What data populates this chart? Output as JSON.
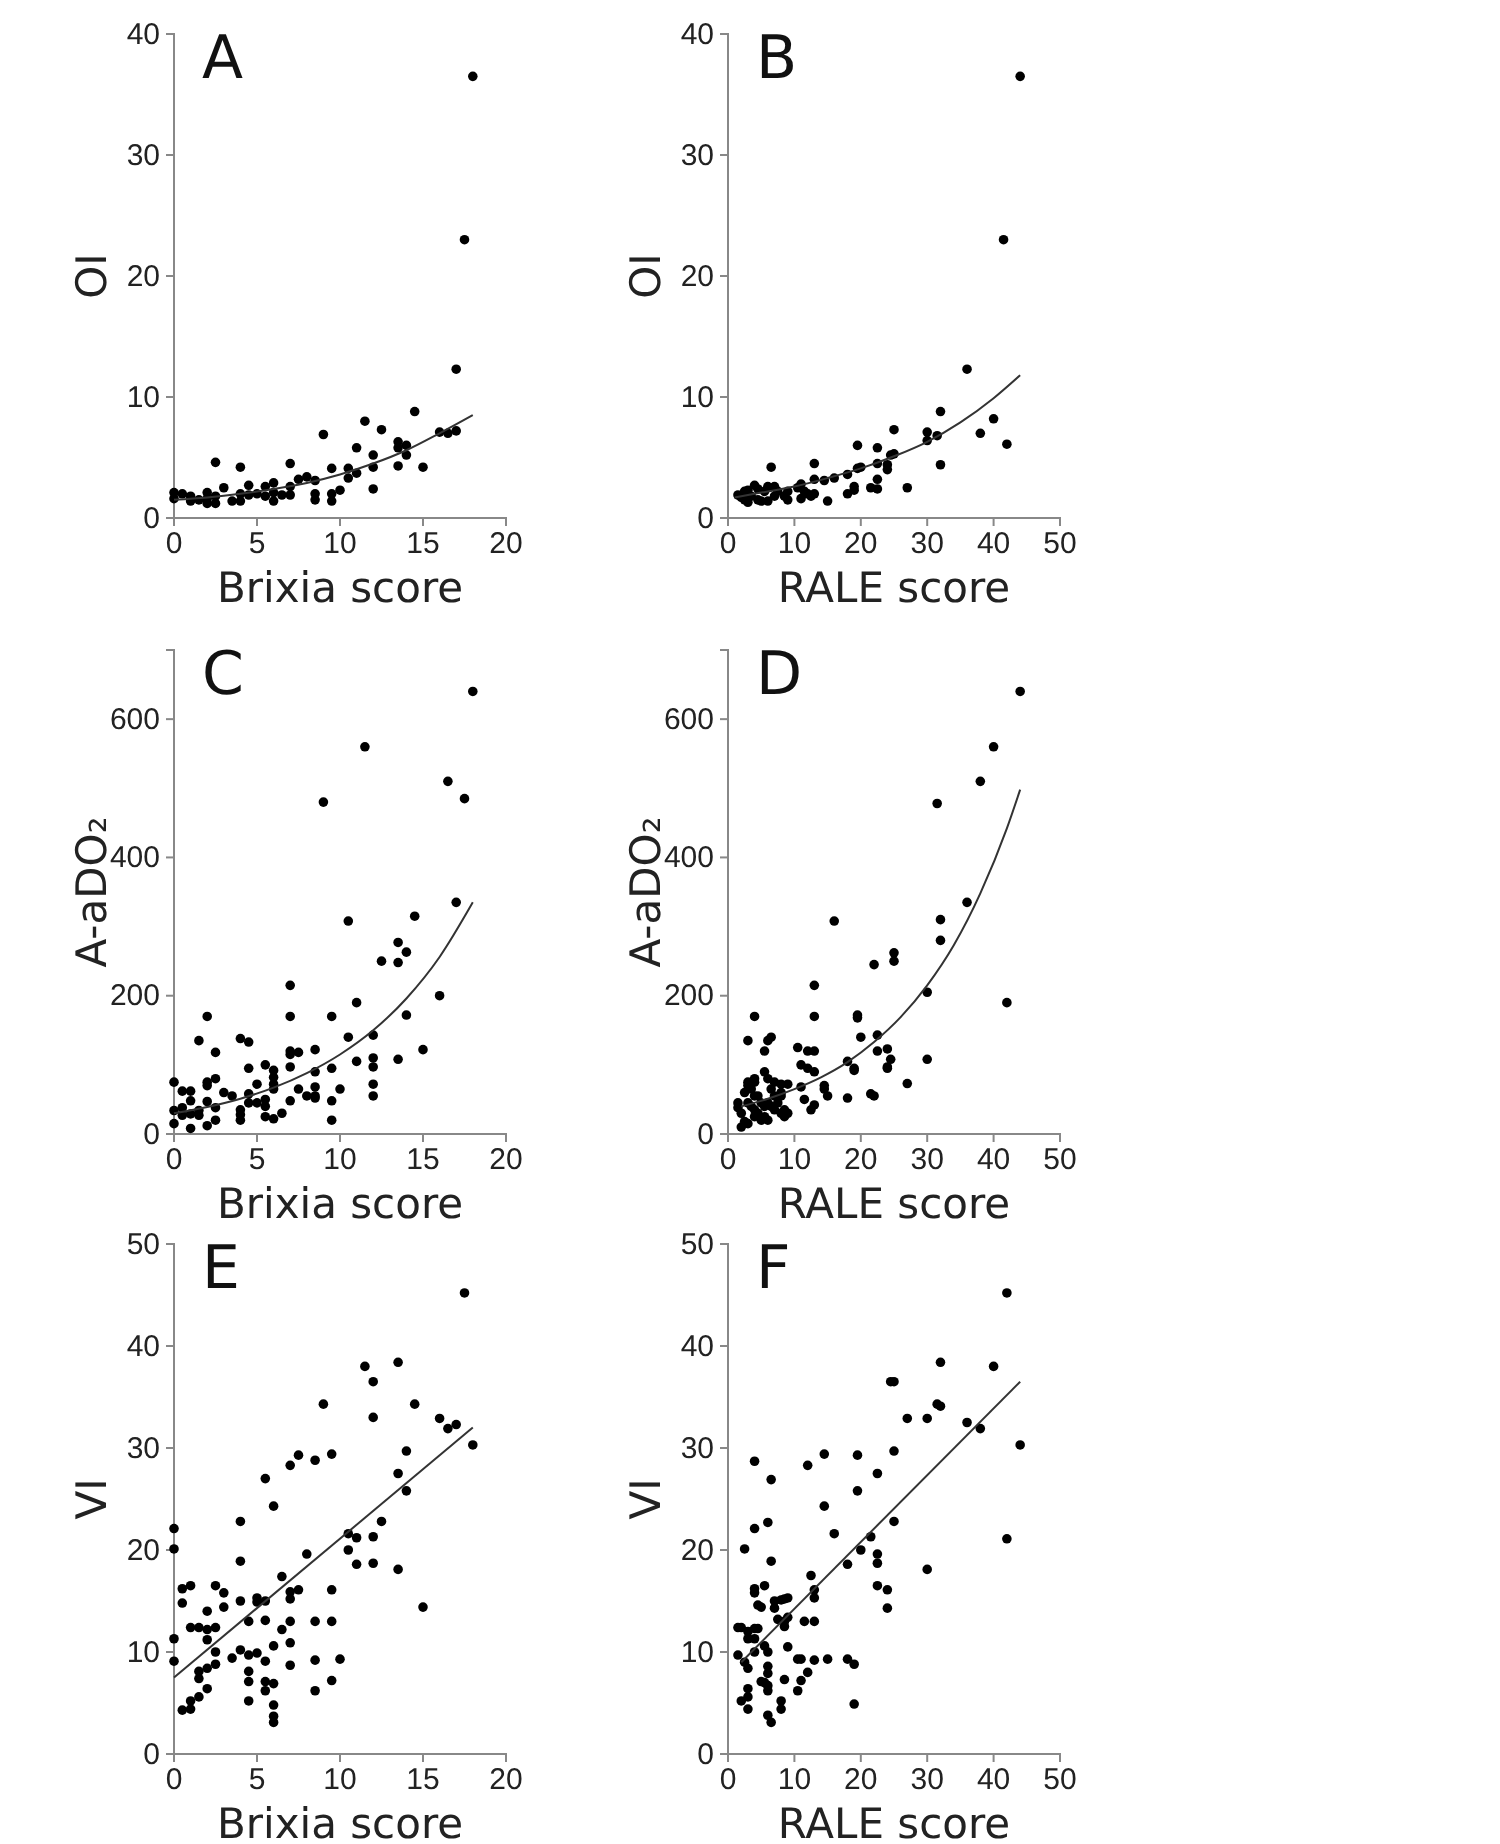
{
  "chart_data": [
    {
      "type": "scatter",
      "title": "A",
      "xlabel": "Brixia score",
      "ylabel": "OI",
      "xlim": [
        0,
        20
      ],
      "xticks": [
        0,
        5,
        10,
        15,
        20
      ],
      "ylim": [
        0,
        40
      ],
      "yticks": [
        0,
        10,
        20,
        30,
        40
      ],
      "series": [
        {
          "marker": "circle",
          "color": "#000000",
          "x": [
            0,
            0,
            0.5,
            1,
            1,
            1.5,
            2,
            2,
            2,
            2.5,
            2.5,
            2.5,
            3,
            3.5,
            4,
            4,
            4,
            4.5,
            4.5,
            5,
            5.5,
            5.5,
            6,
            6,
            6,
            6.5,
            7,
            7,
            7,
            7.5,
            8,
            8.5,
            8.5,
            8.5,
            9,
            9.5,
            9.5,
            9.5,
            10,
            10.5,
            10.5,
            11,
            11,
            11.5,
            12,
            12,
            12,
            12.5,
            13.5,
            13.5,
            13.5,
            14,
            14,
            14.5,
            15,
            16,
            16.5,
            17,
            17,
            17.5,
            18
          ],
          "values": [
            2.1,
            1.6,
            2.0,
            1.8,
            1.4,
            1.5,
            2.1,
            1.6,
            1.2,
            4.6,
            1.8,
            1.2,
            2.5,
            1.4,
            4.2,
            2.0,
            1.4,
            2.7,
            1.9,
            2.0,
            2.6,
            1.8,
            2.9,
            2.1,
            1.4,
            1.9,
            4.5,
            2.6,
            1.9,
            3.2,
            3.4,
            3.1,
            2.0,
            1.5,
            6.9,
            4.1,
            2.0,
            1.4,
            2.3,
            4.1,
            3.3,
            5.8,
            3.7,
            8.0,
            5.2,
            4.2,
            2.4,
            7.3,
            6.3,
            5.8,
            4.3,
            6.0,
            5.2,
            8.8,
            4.2,
            7.1,
            7.0,
            12.3,
            7.2,
            23.0,
            36.5
          ]
        },
        {
          "type": "line",
          "color": "#333333",
          "x": [
            0,
            2,
            4,
            6,
            8,
            10,
            12,
            14,
            16,
            18
          ],
          "values": [
            1.5,
            1.7,
            2.0,
            2.4,
            2.9,
            3.6,
            4.5,
            5.6,
            7.0,
            8.5
          ]
        }
      ]
    },
    {
      "type": "scatter",
      "title": "B",
      "xlabel": "RALE score",
      "ylabel": "OI",
      "xlim": [
        0,
        50
      ],
      "xticks": [
        0,
        10,
        20,
        30,
        40,
        50
      ],
      "ylim": [
        0,
        40
      ],
      "yticks": [
        0,
        10,
        20,
        30,
        40
      ],
      "series": [
        {
          "marker": "circle",
          "color": "#000000",
          "x": [
            1.5,
            2,
            2.5,
            2.5,
            3,
            3,
            3.5,
            4,
            4.5,
            4.5,
            5,
            5.5,
            6,
            6,
            6.5,
            7,
            7,
            7.5,
            8.5,
            9,
            9,
            10.5,
            11,
            11,
            11.5,
            12,
            12.5,
            13,
            13,
            13,
            14.5,
            15,
            16,
            18,
            18,
            19,
            19,
            19.5,
            19.5,
            20,
            21.5,
            22.5,
            22.5,
            22.5,
            22.5,
            24,
            24,
            24.5,
            25,
            25,
            27,
            30,
            30,
            31.5,
            32,
            32,
            36,
            38,
            40,
            41.5,
            42,
            44
          ],
          "values": [
            1.9,
            1.7,
            2.2,
            1.5,
            2.3,
            1.3,
            1.8,
            2.7,
            1.5,
            2.4,
            1.4,
            2.2,
            2.6,
            1.4,
            4.2,
            2.6,
            1.8,
            2.2,
            1.8,
            2.2,
            1.5,
            2.5,
            2.8,
            1.6,
            2.2,
            2.0,
            1.8,
            4.5,
            3.2,
            2.0,
            3.1,
            1.4,
            3.3,
            3.6,
            2.0,
            2.6,
            2.3,
            6.0,
            4.1,
            4.2,
            2.5,
            5.8,
            4.5,
            3.2,
            2.4,
            4.0,
            4.4,
            5.2,
            7.3,
            5.3,
            2.5,
            7.1,
            6.4,
            6.8,
            8.8,
            4.4,
            12.3,
            7.0,
            8.2,
            23.0,
            6.1,
            36.5
          ]
        },
        {
          "type": "line",
          "color": "#333333",
          "x": [
            1,
            5,
            10,
            15,
            20,
            25,
            30,
            35,
            40,
            44
          ],
          "values": [
            1.7,
            2.1,
            2.6,
            3.3,
            4.1,
            5.1,
            6.3,
            7.9,
            9.9,
            11.8
          ]
        }
      ]
    },
    {
      "type": "scatter",
      "title": "C",
      "xlabel": "Brixia score",
      "ylabel": "A-aDO₂",
      "xlim": [
        0,
        20
      ],
      "xticks": [
        0,
        5,
        10,
        15,
        20
      ],
      "ylim": [
        0,
        700
      ],
      "yticks": [
        0,
        200,
        400,
        600
      ],
      "series": [
        {
          "marker": "circle",
          "color": "#000000",
          "x": [
            0,
            0,
            0,
            0.5,
            0.5,
            0.5,
            1,
            1,
            1,
            1,
            1.5,
            1.5,
            1.5,
            2,
            2,
            2,
            2,
            2,
            2.5,
            2.5,
            2.5,
            2.5,
            3,
            3.5,
            4,
            4,
            4,
            4,
            4.5,
            4.5,
            4.5,
            4.5,
            5,
            5,
            5.5,
            5.5,
            5.5,
            5.5,
            6,
            6,
            6,
            6,
            6,
            6.5,
            7,
            7,
            7,
            7,
            7,
            7,
            7.5,
            7.5,
            8,
            8.5,
            8.5,
            8.5,
            8.5,
            8.5,
            9,
            9.5,
            9.5,
            9.5,
            9.5,
            10,
            10.5,
            10.5,
            11,
            11,
            11.5,
            12,
            12,
            12,
            12,
            12,
            12.5,
            13.5,
            13.5,
            13.5,
            14,
            14,
            14.5,
            15,
            16,
            16.5,
            17,
            17.5,
            18
          ],
          "values": [
            75,
            34,
            15,
            62,
            38,
            27,
            62,
            48,
            29,
            8,
            135,
            34,
            27,
            170,
            75,
            70,
            47,
            12,
            118,
            80,
            38,
            20,
            60,
            55,
            138,
            35,
            28,
            20,
            133,
            95,
            58,
            45,
            72,
            45,
            100,
            50,
            40,
            25,
            92,
            82,
            72,
            65,
            22,
            30,
            215,
            170,
            120,
            115,
            97,
            48,
            118,
            65,
            55,
            122,
            90,
            68,
            55,
            52,
            480,
            170,
            95,
            48,
            20,
            65,
            308,
            140,
            190,
            105,
            560,
            143,
            110,
            97,
            72,
            55,
            250,
            277,
            248,
            108,
            263,
            172,
            315,
            122,
            200,
            510,
            335,
            485,
            640
          ]
        },
        {
          "type": "line",
          "color": "#333333",
          "x": [
            0,
            2,
            4,
            6,
            8,
            10,
            12,
            14,
            16,
            18
          ],
          "values": [
            30,
            39,
            51,
            67,
            88,
            115,
            150,
            196,
            256,
            335
          ]
        }
      ]
    },
    {
      "type": "scatter",
      "title": "D",
      "xlabel": "RALE score",
      "ylabel": "A-aDO₂",
      "xlim": [
        0,
        50
      ],
      "xticks": [
        0,
        10,
        20,
        30,
        40,
        50
      ],
      "ylim": [
        0,
        700
      ],
      "yticks": [
        0,
        200,
        400,
        600
      ],
      "series": [
        {
          "marker": "circle",
          "color": "#000000",
          "x": [
            1.5,
            1.5,
            2,
            2,
            2.5,
            2.5,
            3,
            3,
            3,
            3,
            3,
            3.5,
            3.5,
            4,
            4,
            4,
            4,
            4,
            4,
            4.5,
            4.5,
            5,
            5,
            5.5,
            5.5,
            5.5,
            5.5,
            6,
            6,
            6,
            6,
            6.5,
            6.5,
            6.5,
            7,
            7,
            7,
            7.5,
            8,
            8,
            8,
            8,
            8.5,
            8.5,
            9,
            9,
            10.5,
            11,
            11,
            11.5,
            12,
            12,
            12.5,
            13,
            13,
            13,
            13,
            13,
            14.5,
            14.5,
            15,
            16,
            18,
            18,
            19,
            19,
            19.5,
            19.5,
            20,
            21.5,
            22,
            22,
            22.5,
            22.5,
            24,
            24,
            24,
            24.5,
            25,
            25,
            27,
            30,
            30,
            31.5,
            32,
            32,
            36,
            38,
            40,
            42,
            44
          ],
          "values": [
            45,
            38,
            30,
            10,
            60,
            18,
            135,
            75,
            70,
            45,
            15,
            65,
            40,
            170,
            80,
            75,
            55,
            35,
            25,
            55,
            30,
            45,
            20,
            120,
            90,
            40,
            25,
            135,
            80,
            45,
            20,
            140,
            65,
            40,
            75,
            55,
            35,
            45,
            72,
            60,
            55,
            30,
            35,
            25,
            72,
            30,
            125,
            68,
            100,
            50,
            120,
            95,
            35,
            215,
            170,
            120,
            90,
            42,
            70,
            65,
            55,
            308,
            105,
            52,
            95,
            92,
            172,
            168,
            140,
            58,
            245,
            55,
            143,
            120,
            123,
            97,
            95,
            108,
            262,
            250,
            73,
            205,
            108,
            478,
            310,
            280,
            335,
            510,
            560,
            190,
            640
          ]
        },
        {
          "type": "line",
          "color": "#333333",
          "x": [
            2,
            6,
            10,
            14,
            18,
            22,
            26,
            30,
            34,
            38,
            42,
            44
          ],
          "values": [
            40,
            51,
            65,
            82,
            104,
            133,
            169,
            215,
            273,
            348,
            442,
            498
          ]
        }
      ]
    },
    {
      "type": "scatter",
      "title": "E",
      "xlabel": "Brixia score",
      "ylabel": "VI",
      "xlim": [
        0,
        20
      ],
      "xticks": [
        0,
        5,
        10,
        15,
        20
      ],
      "ylim": [
        0,
        50
      ],
      "yticks": [
        0,
        10,
        20,
        30,
        40,
        50
      ],
      "series": [
        {
          "marker": "circle",
          "color": "#000000",
          "x": [
            0,
            0,
            0,
            0,
            0.5,
            0.5,
            0.5,
            1,
            1,
            1,
            1,
            1.5,
            1.5,
            1.5,
            1.5,
            2,
            2,
            2,
            2,
            2,
            2.5,
            2.5,
            2.5,
            2.5,
            3,
            3,
            3.5,
            4,
            4,
            4,
            4,
            4.5,
            4.5,
            4.5,
            4.5,
            4.5,
            5,
            5,
            5,
            5.5,
            5.5,
            5.5,
            5.5,
            5.5,
            5.5,
            6,
            6,
            6,
            6,
            6,
            6,
            6.5,
            6.5,
            7,
            7,
            7,
            7,
            7,
            7,
            7.5,
            7.5,
            8,
            8.5,
            8.5,
            8.5,
            8.5,
            9,
            9.5,
            9.5,
            9.5,
            9.5,
            10,
            10.5,
            10.5,
            11,
            11,
            11.5,
            12,
            12,
            12,
            12,
            12.5,
            13.5,
            13.5,
            13.5,
            14,
            14,
            14.5,
            15,
            16,
            16.5,
            17,
            17.5,
            18
          ],
          "values": [
            22.1,
            20.1,
            11.3,
            9.1,
            16.2,
            14.8,
            4.3,
            16.5,
            12.4,
            5.2,
            4.4,
            12.4,
            8.1,
            7.4,
            5.6,
            14.0,
            12.2,
            11.2,
            8.4,
            6.4,
            16.5,
            12.4,
            10.0,
            8.8,
            15.8,
            14.4,
            9.4,
            22.8,
            18.9,
            15.0,
            10.2,
            13.0,
            9.7,
            8.1,
            7.1,
            5.2,
            15.3,
            14.9,
            9.9,
            27.0,
            15.0,
            13.1,
            9.1,
            7.1,
            6.2,
            24.3,
            10.6,
            6.9,
            4.8,
            3.7,
            3.1,
            17.4,
            12.2,
            28.3,
            15.9,
            15.2,
            13.0,
            10.9,
            8.7,
            29.3,
            16.1,
            19.6,
            28.8,
            13.0,
            9.2,
            6.2,
            34.3,
            29.4,
            16.1,
            13.0,
            7.2,
            9.3,
            21.6,
            20.0,
            21.2,
            18.6,
            38.0,
            36.5,
            33.0,
            21.3,
            18.7,
            22.8,
            38.4,
            27.5,
            18.1,
            29.7,
            25.8,
            34.3,
            14.4,
            32.9,
            31.9,
            32.3,
            45.2,
            30.3
          ]
        },
        {
          "type": "line",
          "color": "#333333",
          "x": [
            0,
            18
          ],
          "values": [
            7.5,
            32
          ]
        }
      ]
    },
    {
      "type": "scatter",
      "title": "F",
      "xlabel": "RALE score",
      "ylabel": "VI",
      "xlim": [
        0,
        50
      ],
      "xticks": [
        0,
        10,
        20,
        30,
        40,
        50
      ],
      "ylim": [
        0,
        50
      ],
      "yticks": [
        0,
        10,
        20,
        30,
        40,
        50
      ],
      "series": [
        {
          "marker": "circle",
          "color": "#000000",
          "x": [
            1.5,
            1.5,
            2,
            2,
            2.5,
            2.5,
            3,
            3,
            3,
            3,
            3,
            3,
            4,
            4,
            4,
            4,
            4,
            4,
            4,
            4.5,
            4.5,
            5,
            5,
            5.5,
            5.5,
            5.5,
            6,
            6,
            6,
            6,
            6,
            6,
            6,
            6.5,
            6.5,
            6.5,
            7,
            7,
            7.5,
            8,
            8,
            8,
            8.5,
            8.5,
            8.5,
            8.5,
            9,
            9,
            9,
            10.5,
            10.5,
            11,
            11,
            11.5,
            12,
            12,
            12.5,
            13,
            13,
            13,
            13,
            14.5,
            14.5,
            15,
            16,
            18,
            18,
            19,
            19,
            19.5,
            19.5,
            20,
            21.5,
            22.5,
            22.5,
            22.5,
            22.5,
            24,
            24,
            24.5,
            25,
            25,
            25,
            27,
            30,
            30,
            31.5,
            32,
            32,
            36,
            38,
            40,
            42,
            42,
            44
          ],
          "values": [
            12.4,
            9.7,
            12.4,
            5.2,
            20.1,
            9.0,
            12.0,
            11.3,
            8.4,
            6.4,
            5.6,
            4.4,
            28.7,
            22.1,
            16.2,
            15.8,
            12.3,
            11.3,
            10.0,
            14.6,
            12.3,
            14.4,
            7.1,
            16.5,
            10.6,
            7.0,
            22.7,
            10.0,
            8.6,
            7.9,
            6.7,
            6.2,
            3.8,
            26.9,
            18.9,
            3.1,
            15.0,
            14.3,
            13.2,
            15.1,
            5.2,
            4.4,
            15.2,
            13.0,
            12.5,
            7.3,
            15.3,
            13.4,
            10.5,
            9.3,
            6.2,
            9.3,
            7.2,
            13.0,
            28.3,
            8.0,
            17.5,
            16.1,
            15.3,
            13.0,
            9.2,
            29.4,
            24.3,
            9.3,
            21.6,
            18.6,
            9.3,
            8.8,
            4.9,
            29.3,
            25.8,
            20.0,
            21.3,
            27.5,
            19.6,
            18.7,
            16.5,
            16.1,
            14.3,
            36.5,
            36.5,
            29.7,
            22.8,
            32.9,
            32.9,
            18.1,
            34.3,
            38.4,
            34.1,
            32.5,
            31.9,
            38.0,
            45.2,
            21.1,
            30.3
          ]
        },
        {
          "type": "line",
          "color": "#333333",
          "x": [
            2,
            44
          ],
          "values": [
            9,
            36.5
          ]
        }
      ]
    }
  ]
}
